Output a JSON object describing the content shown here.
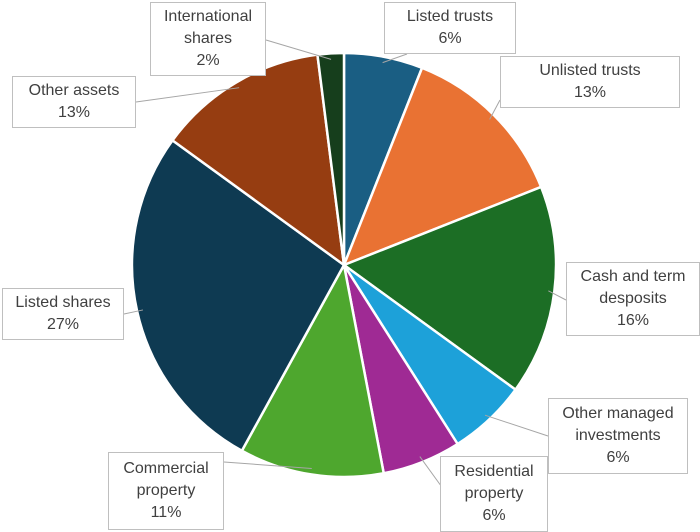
{
  "chart_data": {
    "type": "pie",
    "title": "",
    "slices": [
      {
        "name": "Listed trusts",
        "label_lines": [
          "Listed trusts"
        ],
        "value": 6,
        "value_label": "6%",
        "color": "#1a5e83"
      },
      {
        "name": "Unlisted trusts",
        "label_lines": [
          "Unlisted trusts"
        ],
        "value": 13,
        "value_label": "13%",
        "color": "#e97233"
      },
      {
        "name": "Cash and term desposits",
        "label_lines": [
          "Cash and term",
          "desposits"
        ],
        "value": 16,
        "value_label": "16%",
        "color": "#1c6e25"
      },
      {
        "name": "Other managed investments",
        "label_lines": [
          "Other managed",
          "investments"
        ],
        "value": 6,
        "value_label": "6%",
        "color": "#1da1d9"
      },
      {
        "name": "Residential property",
        "label_lines": [
          "Residential",
          "property"
        ],
        "value": 6,
        "value_label": "6%",
        "color": "#9f2a94"
      },
      {
        "name": "Commercial property",
        "label_lines": [
          "Commercial",
          "property"
        ],
        "value": 11,
        "value_label": "11%",
        "color": "#4ea72e"
      },
      {
        "name": "Listed shares",
        "label_lines": [
          "Listed shares"
        ],
        "value": 27,
        "value_label": "27%",
        "color": "#0e3a52"
      },
      {
        "name": "Other assets",
        "label_lines": [
          "Other assets"
        ],
        "value": 13,
        "value_label": "13%",
        "color": "#963d11"
      },
      {
        "name": "International shares",
        "label_lines": [
          "International",
          "shares"
        ],
        "value": 2,
        "value_label": "2%",
        "color": "#163e1c"
      }
    ]
  }
}
